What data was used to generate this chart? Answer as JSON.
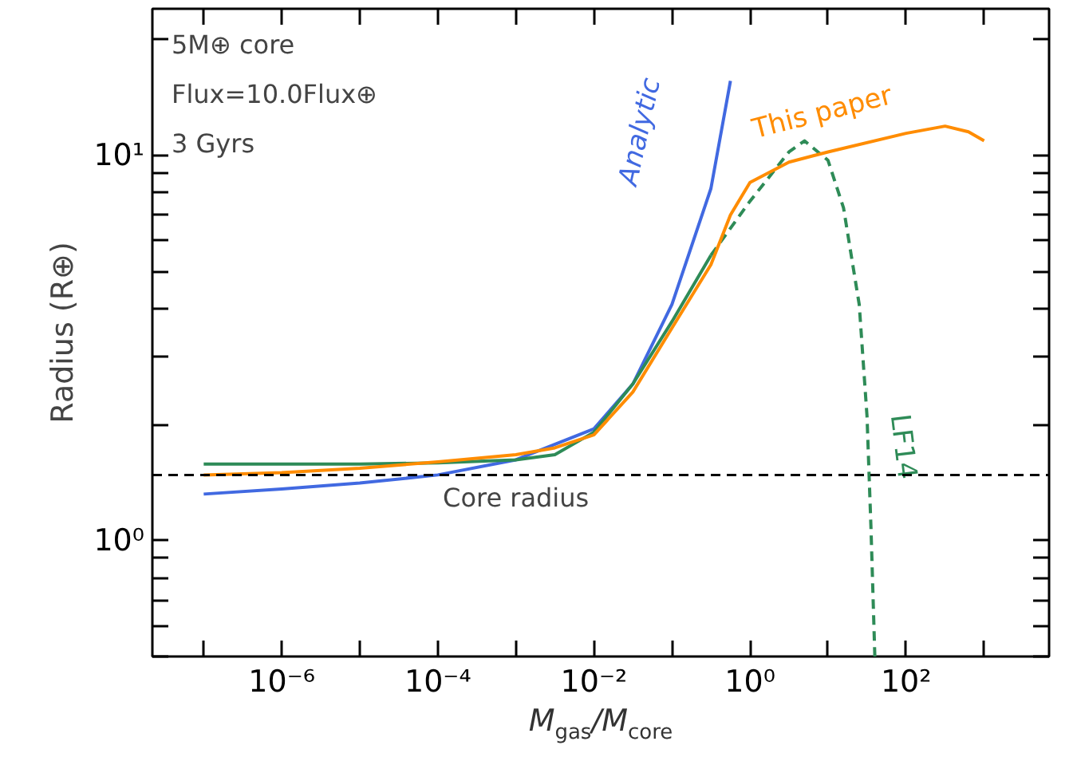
{
  "chart_data": {
    "type": "line",
    "xlabel": "M$_{gas}$/M$_{core}$",
    "ylabel": "Radius (R⊕)",
    "log": "xy",
    "grid": false,
    "xlim": [
      2.2e-08,
      6800
    ],
    "ylim": [
      0.5,
      24
    ],
    "xticks": [
      {
        "value": 1e-07,
        "label": null
      },
      {
        "value": 1e-06,
        "label": "10⁻⁶"
      },
      {
        "value": 1e-05,
        "label": null
      },
      {
        "value": 0.0001,
        "label": "10⁻⁴"
      },
      {
        "value": 0.001,
        "label": null
      },
      {
        "value": 0.01,
        "label": "10⁻²"
      },
      {
        "value": 0.1,
        "label": null
      },
      {
        "value": 1,
        "label": "10⁰"
      },
      {
        "value": 10,
        "label": null
      },
      {
        "value": 100,
        "label": "10²"
      },
      {
        "value": 1000,
        "label": null
      }
    ],
    "yticks": [
      {
        "value": 0.5,
        "label": null
      },
      {
        "value": 0.6,
        "label": null
      },
      {
        "value": 0.7,
        "label": null
      },
      {
        "value": 0.8,
        "label": null
      },
      {
        "value": 0.9,
        "label": null
      },
      {
        "value": 1,
        "label": "10⁰"
      },
      {
        "value": 2,
        "label": null
      },
      {
        "value": 3,
        "label": null
      },
      {
        "value": 4,
        "label": null
      },
      {
        "value": 5,
        "label": null
      },
      {
        "value": 6,
        "label": null
      },
      {
        "value": 7,
        "label": null
      },
      {
        "value": 8,
        "label": null
      },
      {
        "value": 9,
        "label": null
      },
      {
        "value": 10,
        "label": "10¹"
      },
      {
        "value": 20,
        "label": null
      }
    ],
    "series": [
      {
        "name": "Analytic",
        "color": "#4169e1",
        "line_style": "solid",
        "x": [
          1e-07,
          1e-06,
          1e-05,
          0.0001,
          0.001,
          0.01,
          0.0316,
          0.1,
          0.316,
          0.562
        ],
        "values": [
          1.32,
          1.36,
          1.41,
          1.48,
          1.62,
          1.95,
          2.55,
          4.1,
          8.2,
          15.6
        ]
      },
      {
        "color": "#2e8b57",
        "line_style": "solid",
        "x": [
          1e-07,
          1e-06,
          1e-05,
          0.0001,
          0.001,
          0.00316,
          0.01,
          0.0316,
          0.1,
          0.316
        ],
        "values": [
          1.58,
          1.58,
          1.58,
          1.59,
          1.62,
          1.67,
          1.91,
          2.55,
          3.7,
          5.5
        ]
      },
      {
        "name": "LF14",
        "color": "#2e8b57",
        "line_style": "dashed",
        "x": [
          0.316,
          1,
          3.16,
          5.0,
          10,
          15.8,
          25.1,
          31.6,
          35.5,
          39.8
        ],
        "values": [
          5.5,
          7.6,
          10.2,
          10.9,
          9.7,
          7.3,
          4.1,
          2.1,
          1.08,
          0.5
        ]
      },
      {
        "name": "This paper",
        "color": "#ff8c00",
        "line_style": "solid",
        "x": [
          1e-07,
          1e-06,
          1e-05,
          0.0001,
          0.001,
          0.00316,
          0.01,
          0.0316,
          0.1,
          0.316,
          0.562,
          1,
          3.16,
          10,
          100,
          316,
          631,
          1000
        ],
        "values": [
          1.48,
          1.5,
          1.54,
          1.6,
          1.67,
          1.74,
          1.88,
          2.43,
          3.56,
          5.2,
          7.0,
          8.5,
          9.6,
          10.2,
          11.4,
          11.9,
          11.5,
          10.9
        ]
      }
    ],
    "ref_lines": [
      {
        "axis": "y",
        "value": 1.48,
        "label": "Core radius",
        "color": "#000000",
        "line_style": "dashed"
      }
    ],
    "annotations": [
      "5M⊕ core",
      "Flux=10.0Flux⊕",
      "3 Gyrs"
    ]
  }
}
